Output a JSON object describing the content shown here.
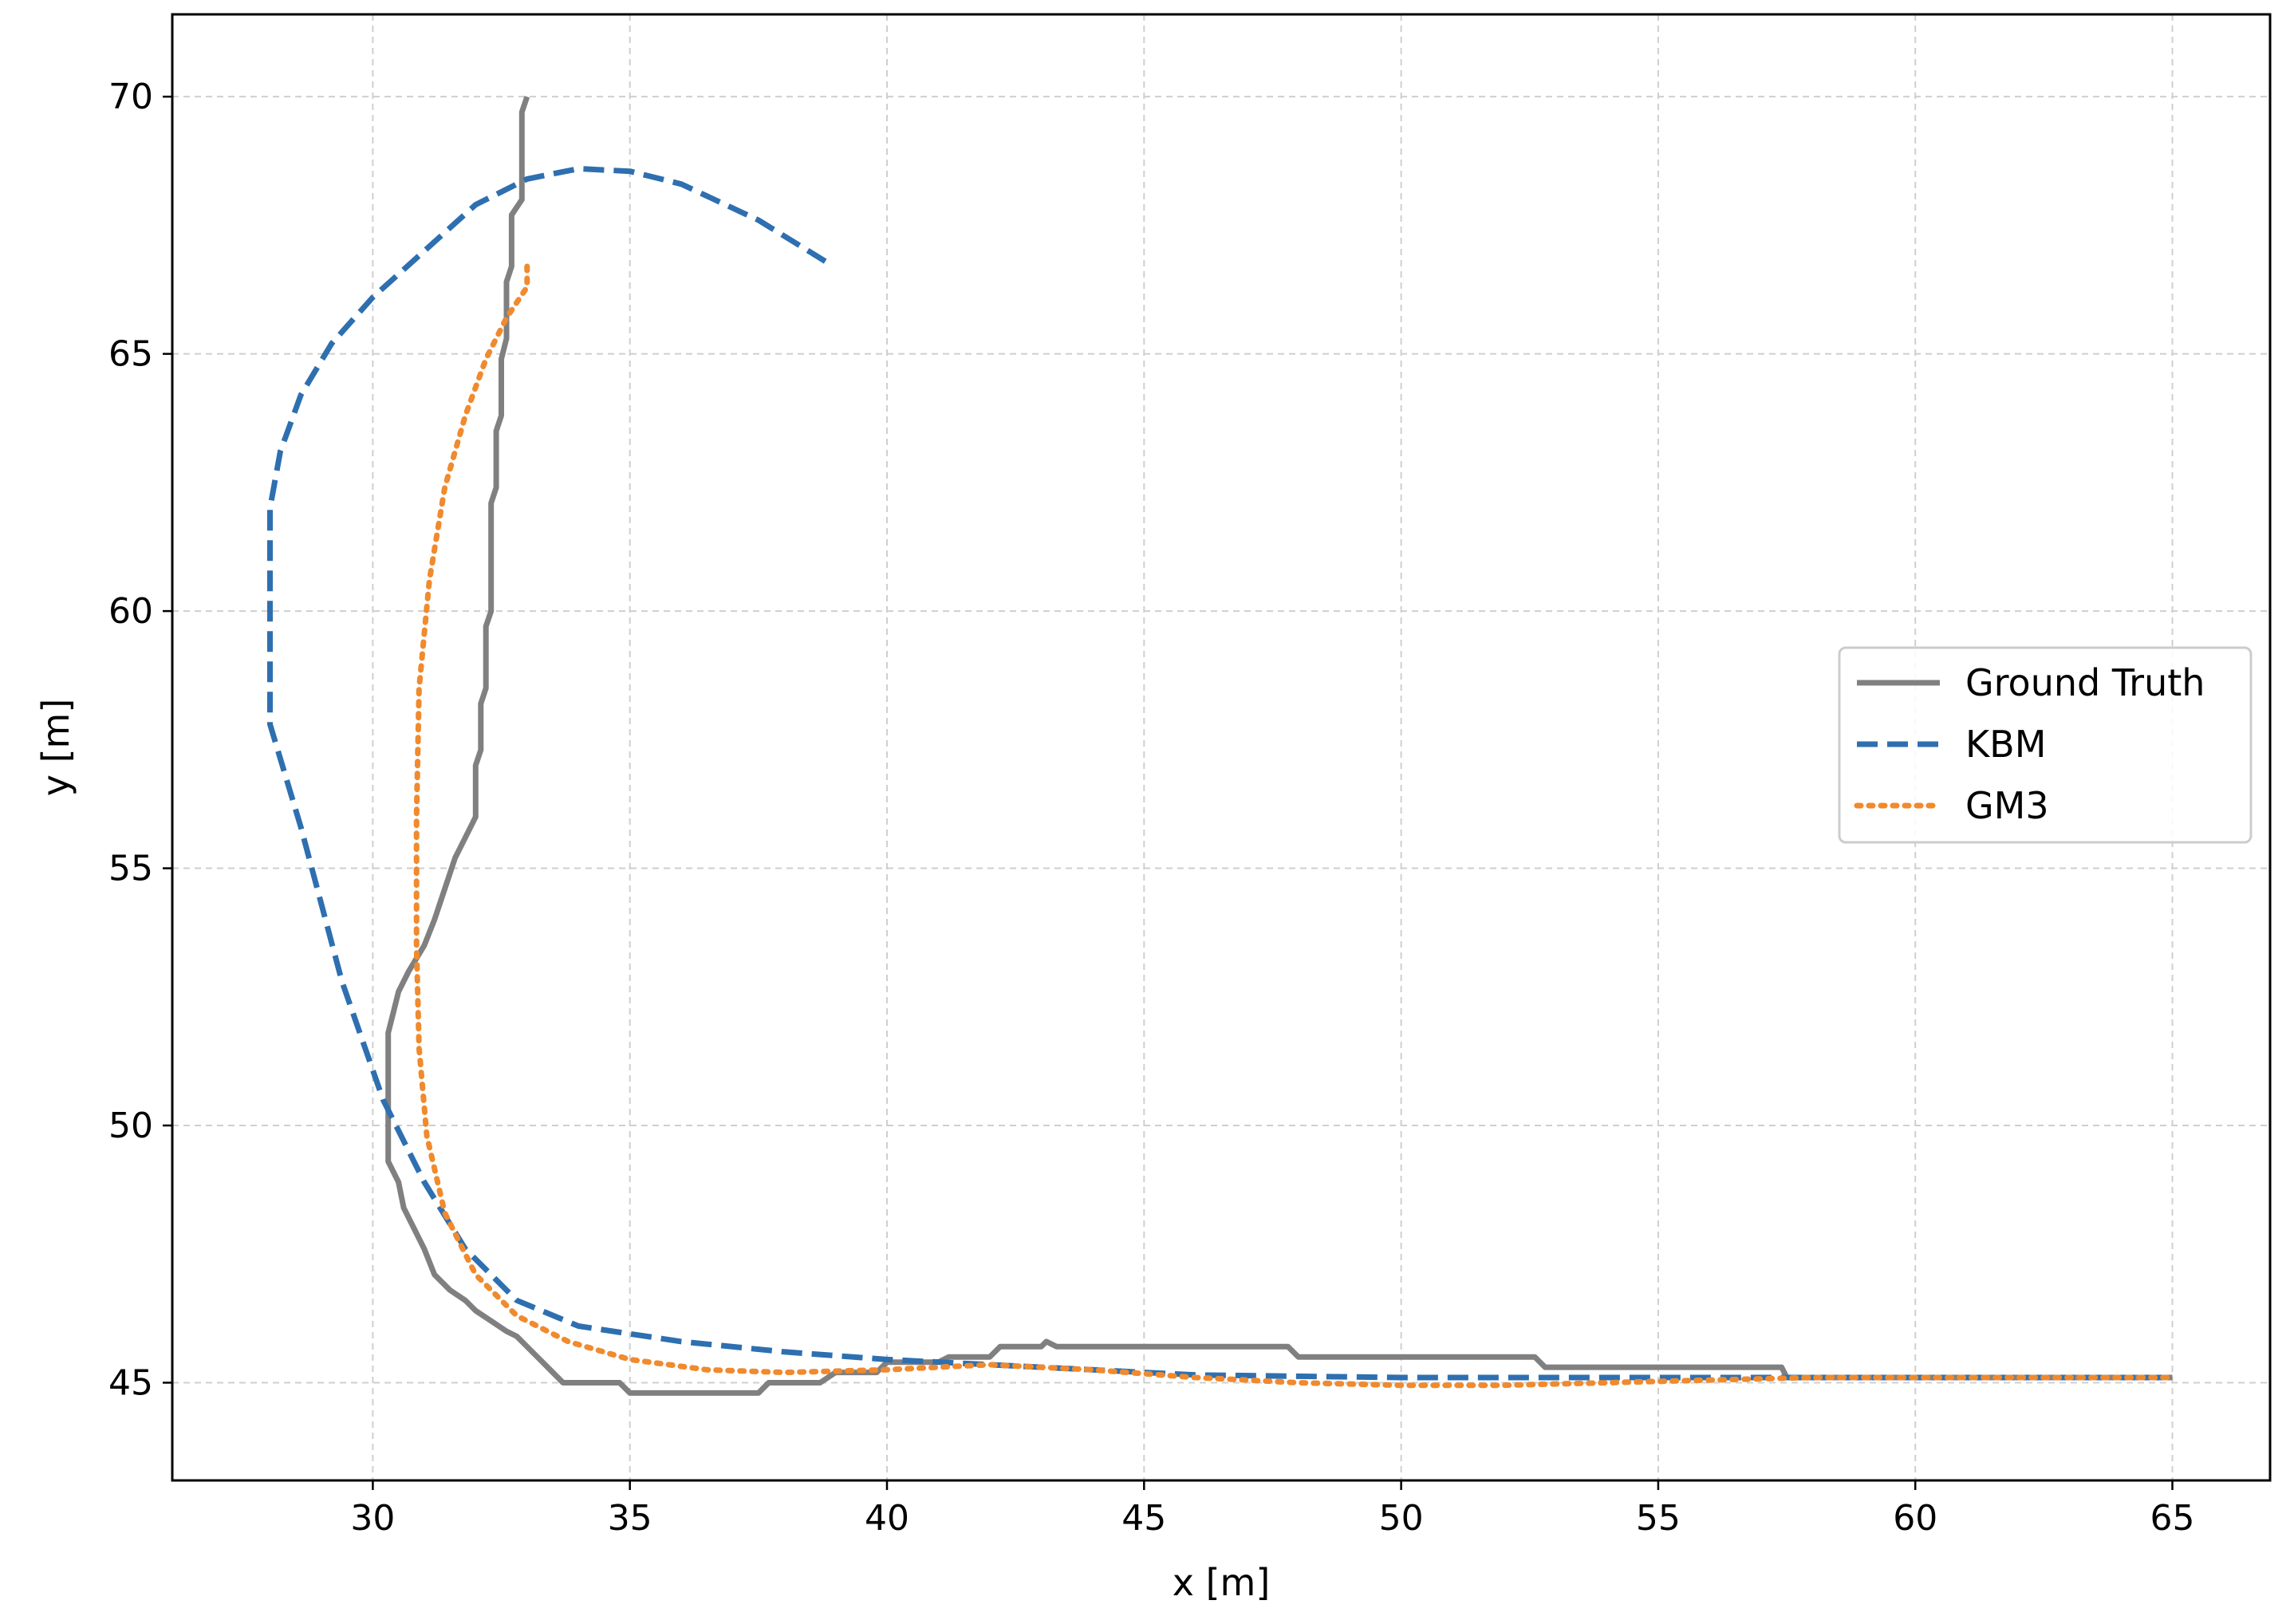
{
  "chart_data": {
    "type": "line",
    "xlabel": "x [m]",
    "ylabel": "y [m]",
    "xlim": [
      26.1,
      66.9
    ],
    "ylim": [
      43.1,
      71.6
    ],
    "xticks": [
      30,
      35,
      40,
      45,
      50,
      55,
      60,
      65
    ],
    "yticks": [
      45,
      50,
      55,
      60,
      65,
      70
    ],
    "grid": true,
    "legend_position": "center-right",
    "series": [
      {
        "name": "Ground Truth",
        "color": "#808080",
        "style": "solid",
        "points": [
          [
            33.0,
            70.0
          ],
          [
            32.9,
            69.7
          ],
          [
            32.9,
            68.0
          ],
          [
            32.7,
            67.7
          ],
          [
            32.7,
            66.7
          ],
          [
            32.6,
            66.4
          ],
          [
            32.6,
            65.3
          ],
          [
            32.5,
            64.9
          ],
          [
            32.5,
            63.8
          ],
          [
            32.4,
            63.5
          ],
          [
            32.4,
            62.4
          ],
          [
            32.3,
            62.1
          ],
          [
            32.3,
            60.0
          ],
          [
            32.2,
            59.7
          ],
          [
            32.2,
            58.5
          ],
          [
            32.1,
            58.2
          ],
          [
            32.1,
            57.3
          ],
          [
            32.0,
            57.0
          ],
          [
            32.0,
            56.0
          ],
          [
            31.9,
            55.8
          ],
          [
            31.6,
            55.2
          ],
          [
            31.4,
            54.6
          ],
          [
            31.2,
            54.0
          ],
          [
            31.0,
            53.5
          ],
          [
            30.7,
            53.0
          ],
          [
            30.5,
            52.6
          ],
          [
            30.4,
            52.2
          ],
          [
            30.3,
            51.8
          ],
          [
            30.3,
            50.5
          ],
          [
            30.3,
            49.3
          ],
          [
            30.5,
            48.9
          ],
          [
            30.6,
            48.4
          ],
          [
            30.8,
            48.0
          ],
          [
            31.0,
            47.6
          ],
          [
            31.2,
            47.1
          ],
          [
            31.5,
            46.8
          ],
          [
            31.8,
            46.6
          ],
          [
            32.0,
            46.4
          ],
          [
            32.3,
            46.2
          ],
          [
            32.6,
            46.0
          ],
          [
            32.8,
            45.9
          ],
          [
            33.0,
            45.7
          ],
          [
            33.2,
            45.5
          ],
          [
            33.4,
            45.3
          ],
          [
            33.7,
            45.0
          ],
          [
            34.8,
            45.0
          ],
          [
            35.0,
            44.8
          ],
          [
            37.5,
            44.8
          ],
          [
            37.7,
            45.0
          ],
          [
            38.7,
            45.0
          ],
          [
            39.0,
            45.2
          ],
          [
            39.8,
            45.2
          ],
          [
            40.0,
            45.4
          ],
          [
            41.0,
            45.4
          ],
          [
            41.2,
            45.5
          ],
          [
            42.0,
            45.5
          ],
          [
            42.2,
            45.7
          ],
          [
            43.0,
            45.7
          ],
          [
            43.1,
            45.8
          ],
          [
            43.3,
            45.7
          ],
          [
            47.8,
            45.7
          ],
          [
            48.0,
            45.5
          ],
          [
            52.6,
            45.5
          ],
          [
            52.8,
            45.3
          ],
          [
            57.4,
            45.3
          ],
          [
            57.5,
            45.1
          ],
          [
            65.0,
            45.1
          ]
        ]
      },
      {
        "name": "KBM",
        "color": "#2e6fb0",
        "style": "dashed",
        "points": [
          [
            38.8,
            66.8
          ],
          [
            37.5,
            67.6
          ],
          [
            36.0,
            68.3
          ],
          [
            35.0,
            68.55
          ],
          [
            34.0,
            68.6
          ],
          [
            33.0,
            68.4
          ],
          [
            32.0,
            67.9
          ],
          [
            31.0,
            67.0
          ],
          [
            30.0,
            66.1
          ],
          [
            29.2,
            65.2
          ],
          [
            28.6,
            64.2
          ],
          [
            28.2,
            63.1
          ],
          [
            28.0,
            62.0
          ],
          [
            28.0,
            57.8
          ],
          [
            28.6,
            55.8
          ],
          [
            29.4,
            52.8
          ],
          [
            30.2,
            50.5
          ],
          [
            31.0,
            48.9
          ],
          [
            31.8,
            47.6
          ],
          [
            32.8,
            46.6
          ],
          [
            34.0,
            46.1
          ],
          [
            36.0,
            45.8
          ],
          [
            38.0,
            45.6
          ],
          [
            40.0,
            45.45
          ],
          [
            42.0,
            45.35
          ],
          [
            44.0,
            45.25
          ],
          [
            46.0,
            45.15
          ],
          [
            50.0,
            45.1
          ],
          [
            55.0,
            45.1
          ],
          [
            65.0,
            45.1
          ]
        ]
      },
      {
        "name": "GM3",
        "color": "#f08a2e",
        "style": "dotted",
        "points": [
          [
            33.0,
            66.7
          ],
          [
            33.0,
            66.3
          ],
          [
            32.6,
            65.7
          ],
          [
            32.2,
            64.9
          ],
          [
            31.8,
            63.8
          ],
          [
            31.4,
            62.4
          ],
          [
            31.1,
            60.6
          ],
          [
            30.9,
            58.5
          ],
          [
            30.85,
            56.0
          ],
          [
            30.85,
            53.5
          ],
          [
            30.9,
            51.5
          ],
          [
            31.05,
            49.8
          ],
          [
            31.4,
            48.3
          ],
          [
            32.0,
            47.1
          ],
          [
            32.8,
            46.3
          ],
          [
            33.8,
            45.8
          ],
          [
            35.0,
            45.45
          ],
          [
            36.5,
            45.25
          ],
          [
            38.0,
            45.2
          ],
          [
            40.0,
            45.25
          ],
          [
            42.0,
            45.35
          ],
          [
            44.0,
            45.25
          ],
          [
            46.0,
            45.1
          ],
          [
            48.0,
            45.0
          ],
          [
            50.0,
            44.95
          ],
          [
            52.0,
            44.95
          ],
          [
            54.0,
            45.0
          ],
          [
            56.0,
            45.05
          ],
          [
            58.0,
            45.1
          ],
          [
            65.0,
            45.1
          ]
        ]
      }
    ]
  }
}
